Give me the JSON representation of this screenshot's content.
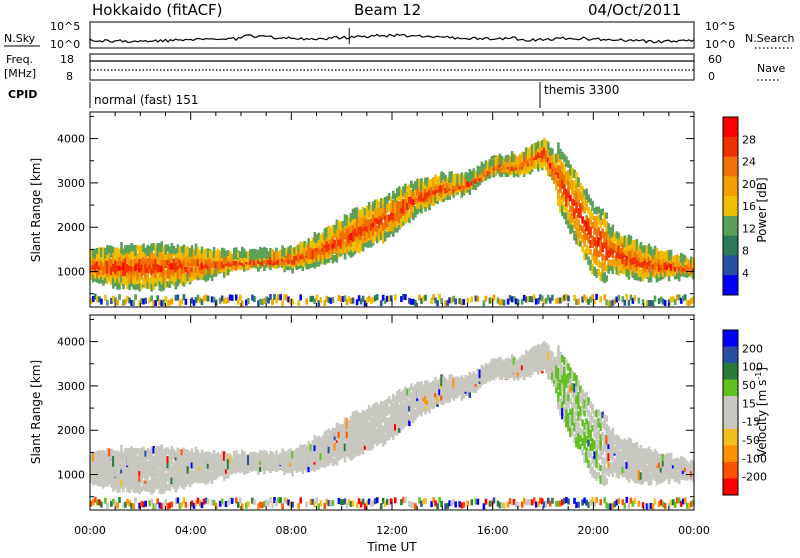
{
  "header": {
    "station": "Hokkaido (fitACF)",
    "beam": "Beam 12",
    "date": "04/Oct/2011"
  },
  "top_panels": {
    "nsky_label": "N.Sky",
    "nsearch_label": "N.Search",
    "noise_ticks": [
      "10^5",
      "10^0"
    ],
    "freq_label_1": "Freq.",
    "freq_label_2": "[MHz]",
    "freq_ticks": [
      "18",
      "8"
    ],
    "nave_ticks": [
      "60",
      "0"
    ],
    "nave_label": "Nave",
    "cpid_label": "CPID",
    "cpid_segments": [
      {
        "label": "normal (fast) 151",
        "start_hour": 0,
        "end_hour": 18.0
      },
      {
        "label": "themis 3300",
        "start_hour": 18.0,
        "end_hour": 24
      }
    ]
  },
  "colors": {
    "power_scale": [
      "#0000ff",
      "#2a4ea0",
      "#2a7a5a",
      "#5aa05a",
      "#f0c000",
      "#f0a000",
      "#f07000",
      "#f03000",
      "#ff0000"
    ],
    "velocity_scale": [
      "#ff0000",
      "#ff5000",
      "#ff9000",
      "#f0c020",
      "#c8c8c0",
      "#c8c8c0",
      "#60c020",
      "#2a7a3a",
      "#2a4ea0",
      "#0000ff"
    ],
    "ground_scatter": "#c8c8c0"
  },
  "chart_data": [
    {
      "type": "heatmap",
      "title": "Power",
      "ylabel": "Slant Range [km]",
      "ylim": [
        200,
        4600
      ],
      "yticks": [
        "1000",
        "2000",
        "3000",
        "4000"
      ],
      "xlim": [
        0,
        24
      ],
      "xticks": [
        "00:00",
        "04:00",
        "08:00",
        "12:00",
        "16:00",
        "20:00",
        "00:00"
      ],
      "colorbar_label": "Power [dB]",
      "colorbar_ticks": [
        "4",
        "8",
        "12",
        "16",
        "20",
        "24",
        "28"
      ],
      "colorbar_range": [
        0,
        30
      ],
      "echo_band_center_km": [
        [
          0,
          1150
        ],
        [
          2,
          1100
        ],
        [
          4,
          1150
        ],
        [
          6,
          1250
        ],
        [
          8,
          1300
        ],
        [
          9,
          1500
        ],
        [
          10,
          1750
        ],
        [
          12,
          2300
        ],
        [
          13,
          2700
        ],
        [
          14,
          2900
        ],
        [
          15,
          3000
        ],
        [
          16,
          3400
        ],
        [
          17,
          3400
        ],
        [
          18,
          3700
        ],
        [
          19,
          2700
        ],
        [
          20,
          1700
        ],
        [
          21,
          1400
        ],
        [
          22,
          1200
        ],
        [
          24,
          1100
        ]
      ]
    },
    {
      "type": "heatmap",
      "title": "Velocity",
      "ylabel": "Slant Range [km]",
      "xlabel": "Time UT",
      "ylim": [
        200,
        4600
      ],
      "yticks": [
        "1000",
        "2000",
        "3000",
        "4000"
      ],
      "xlim": [
        0,
        24
      ],
      "xticks": [
        "00:00",
        "04:00",
        "08:00",
        "12:00",
        "16:00",
        "20:00",
        "00:00"
      ],
      "colorbar_label_main": "Velocity [m s",
      "colorbar_label_sup": "-1",
      "colorbar_label_end": "]",
      "colorbar_ticks": [
        "200",
        "100",
        "50",
        "15",
        "-15",
        "-50",
        "-100",
        "-200"
      ]
    }
  ]
}
